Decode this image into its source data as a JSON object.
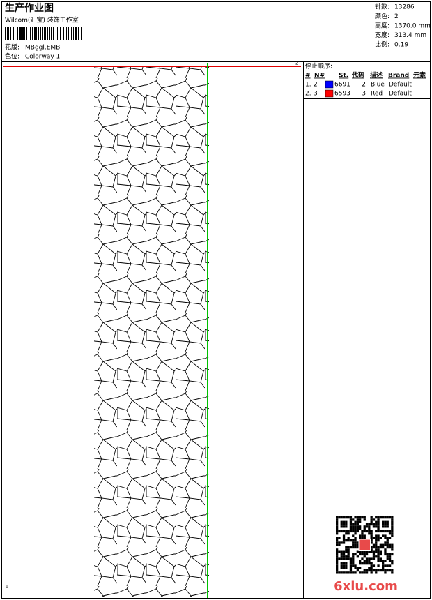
{
  "header": {
    "title": "生产作业图",
    "subtitle": "Wilcom(汇宝) 装饰工作室",
    "fields": [
      {
        "label": "花版:",
        "value": "MBggl.EMB"
      },
      {
        "label": "色位:",
        "value": "Colorway 1"
      }
    ]
  },
  "info": [
    {
      "label": "针数:",
      "value": "13286"
    },
    {
      "label": "颜色:",
      "value": "2"
    },
    {
      "label": "高度:",
      "value": "1370.0 mm"
    },
    {
      "label": "宽度:",
      "value": "313.4 mm"
    },
    {
      "label": "比例:",
      "value": "0.19"
    }
  ],
  "stop_sequence": {
    "title": "停止顺序:",
    "columns": [
      "#",
      "N#",
      "St.",
      "代码",
      "描述",
      "Brand",
      "元素"
    ],
    "rows": [
      {
        "cells": [
          "1.",
          "2",
          "6691",
          "2",
          "Blue",
          "Default"
        ],
        "color": "#0000ff"
      },
      {
        "cells": [
          "2.",
          "3",
          "6593",
          "3",
          "Red",
          "Default"
        ],
        "color": "#ff0000"
      }
    ]
  },
  "design": {
    "start_marker": "1",
    "end_marker": "2"
  },
  "watermark": "6xiu.com"
}
